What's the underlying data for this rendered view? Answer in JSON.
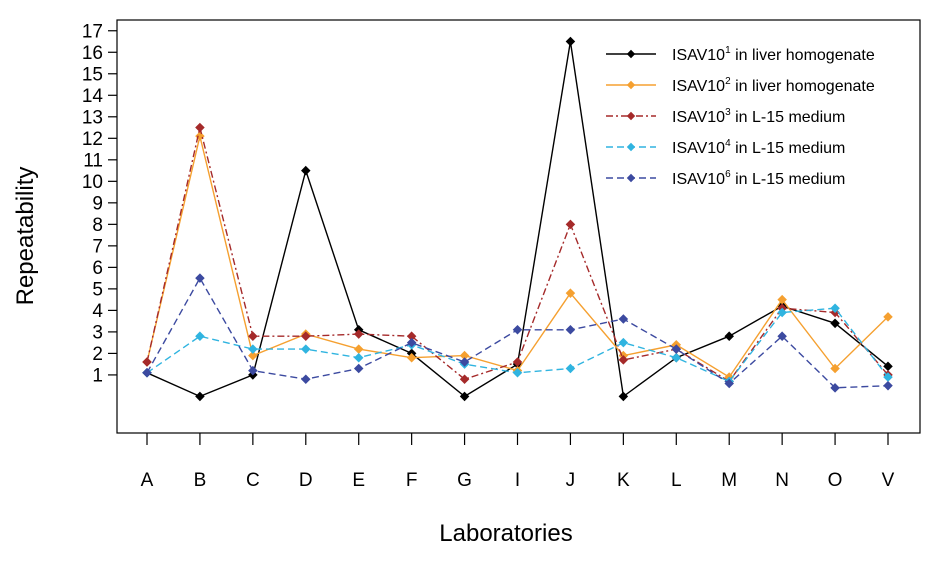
{
  "chart_data": {
    "type": "line",
    "title": "",
    "xlabel": "Laboratories",
    "ylabel": "Repeatability",
    "categories": [
      "A",
      "B",
      "C",
      "D",
      "E",
      "F",
      "G",
      "I",
      "J",
      "K",
      "L",
      "M",
      "N",
      "O",
      "V"
    ],
    "ylim": [
      -1.7,
      17.5
    ],
    "yticks": [
      1,
      2,
      3,
      4,
      5,
      6,
      7,
      8,
      9,
      10,
      11,
      12,
      13,
      14,
      15,
      16,
      17
    ],
    "grid": false,
    "legend_position": "top-right",
    "series": [
      {
        "name": "ISAV10",
        "name_superscript": "1",
        "name_suffix": " in liver homogenate",
        "color": "#000000",
        "dash": "solid",
        "values": [
          1.1,
          0.0,
          1.0,
          10.5,
          3.1,
          2.0,
          0.0,
          1.5,
          16.5,
          0.0,
          1.8,
          2.8,
          4.2,
          3.4,
          1.4
        ]
      },
      {
        "name": "ISAV10",
        "name_superscript": "2",
        "name_suffix": " in liver homogenate",
        "color": "#f5a030",
        "dash": "solid",
        "values": [
          1.6,
          12.1,
          1.9,
          2.9,
          2.2,
          1.8,
          1.9,
          1.2,
          4.8,
          1.9,
          2.4,
          0.9,
          4.5,
          1.3,
          3.7
        ]
      },
      {
        "name": "ISAV10",
        "name_superscript": "3",
        "name_suffix": " in L-15 medium",
        "color": "#a52a2a",
        "dash": "dashdot",
        "values": [
          1.6,
          12.5,
          2.8,
          2.8,
          2.9,
          2.8,
          0.8,
          1.6,
          8.0,
          1.7,
          2.2,
          0.7,
          4.1,
          3.9,
          1.0
        ]
      },
      {
        "name": "ISAV10",
        "name_superscript": "4",
        "name_suffix": " in L-15 medium",
        "color": "#30b4e0",
        "dash": "dashed",
        "values": [
          1.1,
          2.8,
          2.2,
          2.2,
          1.8,
          2.4,
          1.5,
          1.1,
          1.3,
          2.5,
          1.8,
          0.7,
          3.9,
          4.1,
          0.9
        ]
      },
      {
        "name": "ISAV10",
        "name_superscript": "6",
        "name_suffix": " in L-15 medium",
        "color": "#3c4aa0",
        "dash": "dashed",
        "values": [
          1.1,
          5.5,
          1.2,
          0.8,
          1.3,
          2.5,
          1.6,
          3.1,
          3.1,
          3.6,
          2.2,
          0.6,
          2.8,
          0.4,
          0.5
        ]
      }
    ]
  }
}
